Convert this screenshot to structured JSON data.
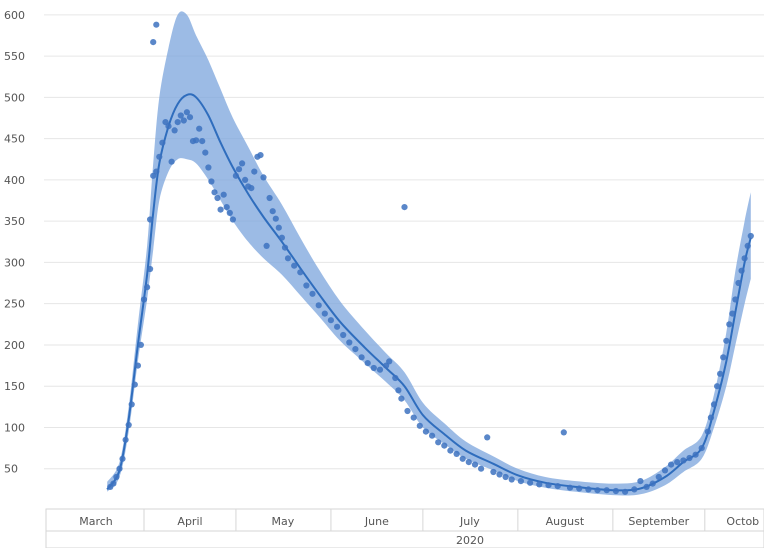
{
  "chart_data": {
    "type": "line",
    "title": "",
    "xlabel": "",
    "ylabel": "",
    "ylim": [
      0,
      600
    ],
    "y_ticks": [
      50,
      100,
      150,
      200,
      250,
      300,
      350,
      400,
      450,
      500,
      550,
      600
    ],
    "y_tick_labels": [
      "50",
      "100",
      "150",
      "200",
      "250",
      "300",
      "350",
      "400",
      "450",
      "500",
      "550",
      "600"
    ],
    "x_axis": {
      "month_labels": [
        "March",
        "April",
        "May",
        "June",
        "July",
        "August",
        "September",
        "Octob"
      ],
      "year_label": "2020"
    },
    "grid": "horizontal",
    "colors": {
      "line": "#2f6dbd",
      "band": "#7ba4dc",
      "points": "#3d72bf",
      "grid": "#e6e6e6",
      "axis_text": "#555555"
    },
    "series": [
      {
        "kind": "trend",
        "points": [
          [
            "2020-03-20",
            25
          ],
          [
            "2020-03-24",
            48
          ],
          [
            "2020-03-27",
            110
          ],
          [
            "2020-03-30",
            200
          ],
          [
            "2020-04-02",
            285
          ],
          [
            "2020-04-04",
            360
          ],
          [
            "2020-04-06",
            420
          ],
          [
            "2020-04-09",
            465
          ],
          [
            "2020-04-12",
            492
          ],
          [
            "2020-04-15",
            503
          ],
          [
            "2020-04-18",
            500
          ],
          [
            "2020-04-22",
            478
          ],
          [
            "2020-04-26",
            445
          ],
          [
            "2020-04-30",
            415
          ],
          [
            "2020-05-05",
            383
          ],
          [
            "2020-05-10",
            355
          ],
          [
            "2020-05-16",
            325
          ],
          [
            "2020-05-22",
            293
          ],
          [
            "2020-05-28",
            262
          ],
          [
            "2020-06-04",
            228
          ],
          [
            "2020-06-12",
            197
          ],
          [
            "2020-06-19",
            172
          ],
          [
            "2020-06-25",
            150
          ],
          [
            "2020-07-01",
            115
          ],
          [
            "2020-07-08",
            92
          ],
          [
            "2020-07-15",
            72
          ],
          [
            "2020-07-24",
            56
          ],
          [
            "2020-08-01",
            42
          ],
          [
            "2020-08-10",
            33
          ],
          [
            "2020-08-20",
            28
          ],
          [
            "2020-09-01",
            24
          ],
          [
            "2020-09-10",
            26
          ],
          [
            "2020-09-18",
            40
          ],
          [
            "2020-09-24",
            58
          ],
          [
            "2020-09-30",
            75
          ],
          [
            "2020-10-04",
            120
          ],
          [
            "2020-10-08",
            180
          ],
          [
            "2020-10-11",
            240
          ],
          [
            "2020-10-14",
            300
          ],
          [
            "2020-10-16",
            330
          ]
        ]
      },
      {
        "kind": "band",
        "points": [
          [
            "2020-03-20",
            22,
            34
          ],
          [
            "2020-03-24",
            40,
            58
          ],
          [
            "2020-03-27",
            95,
            125
          ],
          [
            "2020-03-30",
            180,
            225
          ],
          [
            "2020-04-02",
            255,
            320
          ],
          [
            "2020-04-04",
            315,
            420
          ],
          [
            "2020-04-06",
            375,
            500
          ],
          [
            "2020-04-09",
            410,
            560
          ],
          [
            "2020-04-12",
            425,
            600
          ],
          [
            "2020-04-15",
            425,
            600
          ],
          [
            "2020-04-18",
            420,
            575
          ],
          [
            "2020-04-22",
            400,
            545
          ],
          [
            "2020-04-26",
            375,
            510
          ],
          [
            "2020-04-30",
            350,
            475
          ],
          [
            "2020-05-05",
            325,
            440
          ],
          [
            "2020-05-10",
            305,
            405
          ],
          [
            "2020-05-16",
            285,
            370
          ],
          [
            "2020-05-22",
            260,
            330
          ],
          [
            "2020-05-28",
            235,
            292
          ],
          [
            "2020-06-04",
            205,
            253
          ],
          [
            "2020-06-12",
            178,
            218
          ],
          [
            "2020-06-19",
            155,
            190
          ],
          [
            "2020-06-25",
            133,
            167
          ],
          [
            "2020-07-01",
            100,
            130
          ],
          [
            "2020-07-08",
            80,
            105
          ],
          [
            "2020-07-15",
            62,
            83
          ],
          [
            "2020-07-24",
            48,
            65
          ],
          [
            "2020-08-01",
            35,
            50
          ],
          [
            "2020-08-10",
            27,
            40
          ],
          [
            "2020-08-20",
            22,
            35
          ],
          [
            "2020-09-01",
            18,
            32
          ],
          [
            "2020-09-10",
            19,
            35
          ],
          [
            "2020-09-18",
            30,
            52
          ],
          [
            "2020-09-24",
            46,
            72
          ],
          [
            "2020-09-30",
            62,
            90
          ],
          [
            "2020-10-04",
            100,
            140
          ],
          [
            "2020-10-08",
            150,
            215
          ],
          [
            "2020-10-11",
            200,
            290
          ],
          [
            "2020-10-14",
            250,
            350
          ],
          [
            "2020-10-16",
            280,
            385
          ]
        ]
      },
      {
        "kind": "scatter",
        "points": [
          [
            "2020-03-21",
            28
          ],
          [
            "2020-03-22",
            32
          ],
          [
            "2020-03-23",
            40
          ],
          [
            "2020-03-24",
            50
          ],
          [
            "2020-03-25",
            62
          ],
          [
            "2020-03-26",
            85
          ],
          [
            "2020-03-27",
            103
          ],
          [
            "2020-03-28",
            128
          ],
          [
            "2020-03-29",
            152
          ],
          [
            "2020-03-30",
            175
          ],
          [
            "2020-03-31",
            200
          ],
          [
            "2020-04-01",
            255
          ],
          [
            "2020-04-02",
            270
          ],
          [
            "2020-04-03",
            292
          ],
          [
            "2020-04-03",
            352
          ],
          [
            "2020-04-04",
            405
          ],
          [
            "2020-04-04",
            567
          ],
          [
            "2020-04-05",
            588
          ],
          [
            "2020-04-05",
            410
          ],
          [
            "2020-04-06",
            428
          ],
          [
            "2020-04-07",
            445
          ],
          [
            "2020-04-08",
            470
          ],
          [
            "2020-04-09",
            465
          ],
          [
            "2020-04-10",
            422
          ],
          [
            "2020-04-11",
            460
          ],
          [
            "2020-04-12",
            470
          ],
          [
            "2020-04-13",
            478
          ],
          [
            "2020-04-14",
            472
          ],
          [
            "2020-04-15",
            482
          ],
          [
            "2020-04-16",
            476
          ],
          [
            "2020-04-17",
            447
          ],
          [
            "2020-04-18",
            448
          ],
          [
            "2020-04-19",
            462
          ],
          [
            "2020-04-20",
            447
          ],
          [
            "2020-04-21",
            433
          ],
          [
            "2020-04-22",
            415
          ],
          [
            "2020-04-23",
            398
          ],
          [
            "2020-04-24",
            385
          ],
          [
            "2020-04-25",
            378
          ],
          [
            "2020-04-26",
            364
          ],
          [
            "2020-04-27",
            382
          ],
          [
            "2020-04-28",
            367
          ],
          [
            "2020-04-29",
            360
          ],
          [
            "2020-04-30",
            352
          ],
          [
            "2020-05-01",
            405
          ],
          [
            "2020-05-02",
            413
          ],
          [
            "2020-05-03",
            420
          ],
          [
            "2020-05-04",
            400
          ],
          [
            "2020-05-05",
            392
          ],
          [
            "2020-05-06",
            390
          ],
          [
            "2020-05-07",
            410
          ],
          [
            "2020-05-08",
            428
          ],
          [
            "2020-05-09",
            430
          ],
          [
            "2020-05-10",
            403
          ],
          [
            "2020-05-11",
            320
          ],
          [
            "2020-05-12",
            378
          ],
          [
            "2020-05-13",
            362
          ],
          [
            "2020-05-14",
            353
          ],
          [
            "2020-05-15",
            342
          ],
          [
            "2020-05-16",
            330
          ],
          [
            "2020-05-17",
            318
          ],
          [
            "2020-05-18",
            305
          ],
          [
            "2020-05-20",
            296
          ],
          [
            "2020-05-22",
            288
          ],
          [
            "2020-05-24",
            272
          ],
          [
            "2020-05-26",
            262
          ],
          [
            "2020-05-28",
            248
          ],
          [
            "2020-05-30",
            238
          ],
          [
            "2020-06-01",
            230
          ],
          [
            "2020-06-03",
            222
          ],
          [
            "2020-06-05",
            212
          ],
          [
            "2020-06-07",
            203
          ],
          [
            "2020-06-09",
            195
          ],
          [
            "2020-06-11",
            185
          ],
          [
            "2020-06-13",
            178
          ],
          [
            "2020-06-15",
            172
          ],
          [
            "2020-06-17",
            170
          ],
          [
            "2020-06-19",
            175
          ],
          [
            "2020-06-20",
            180
          ],
          [
            "2020-06-22",
            160
          ],
          [
            "2020-06-23",
            145
          ],
          [
            "2020-06-24",
            135
          ],
          [
            "2020-06-25",
            367
          ],
          [
            "2020-06-26",
            120
          ],
          [
            "2020-06-28",
            112
          ],
          [
            "2020-06-30",
            102
          ],
          [
            "2020-07-02",
            95
          ],
          [
            "2020-07-04",
            90
          ],
          [
            "2020-07-06",
            82
          ],
          [
            "2020-07-08",
            78
          ],
          [
            "2020-07-10",
            72
          ],
          [
            "2020-07-12",
            68
          ],
          [
            "2020-07-14",
            62
          ],
          [
            "2020-07-16",
            58
          ],
          [
            "2020-07-18",
            55
          ],
          [
            "2020-07-20",
            50
          ],
          [
            "2020-07-22",
            88
          ],
          [
            "2020-07-24",
            46
          ],
          [
            "2020-07-26",
            43
          ],
          [
            "2020-07-28",
            40
          ],
          [
            "2020-07-30",
            37
          ],
          [
            "2020-08-02",
            35
          ],
          [
            "2020-08-05",
            33
          ],
          [
            "2020-08-08",
            31
          ],
          [
            "2020-08-11",
            30
          ],
          [
            "2020-08-14",
            29
          ],
          [
            "2020-08-16",
            94
          ],
          [
            "2020-08-18",
            27
          ],
          [
            "2020-08-21",
            26
          ],
          [
            "2020-08-24",
            25
          ],
          [
            "2020-08-27",
            24
          ],
          [
            "2020-08-30",
            24
          ],
          [
            "2020-09-02",
            23
          ],
          [
            "2020-09-05",
            22
          ],
          [
            "2020-09-08",
            25
          ],
          [
            "2020-09-10",
            35
          ],
          [
            "2020-09-12",
            28
          ],
          [
            "2020-09-14",
            32
          ],
          [
            "2020-09-16",
            40
          ],
          [
            "2020-09-18",
            48
          ],
          [
            "2020-09-20",
            55
          ],
          [
            "2020-09-22",
            58
          ],
          [
            "2020-09-24",
            60
          ],
          [
            "2020-09-26",
            63
          ],
          [
            "2020-09-28",
            67
          ],
          [
            "2020-09-30",
            75
          ],
          [
            "2020-10-02",
            95
          ],
          [
            "2020-10-03",
            112
          ],
          [
            "2020-10-04",
            128
          ],
          [
            "2020-10-05",
            150
          ],
          [
            "2020-10-06",
            165
          ],
          [
            "2020-10-07",
            185
          ],
          [
            "2020-10-08",
            205
          ],
          [
            "2020-10-09",
            225
          ],
          [
            "2020-10-10",
            238
          ],
          [
            "2020-10-11",
            255
          ],
          [
            "2020-10-12",
            275
          ],
          [
            "2020-10-13",
            290
          ],
          [
            "2020-10-14",
            305
          ],
          [
            "2020-10-15",
            320
          ],
          [
            "2020-10-16",
            332
          ]
        ]
      }
    ]
  }
}
